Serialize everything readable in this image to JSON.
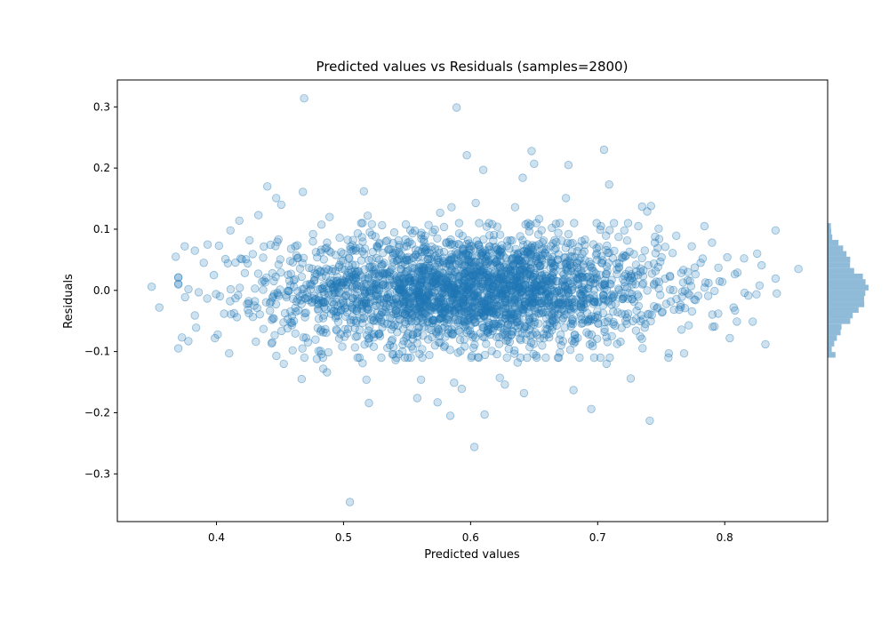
{
  "chart_data": {
    "type": "scatter",
    "title": "Predicted values vs Residuals (samples=2800)",
    "xlabel": "Predicted values",
    "ylabel": "Residuals",
    "xlim": [
      0.322,
      0.881
    ],
    "ylim": [
      -0.378,
      0.344
    ],
    "xticks": [
      0.4,
      0.5,
      0.6,
      0.7,
      0.8
    ],
    "yticks": [
      0.3,
      0.2,
      0.1,
      0.0,
      -0.1,
      -0.2,
      -0.3
    ],
    "xtick_labels": [
      "0.4",
      "0.5",
      "0.6",
      "0.7",
      "0.8"
    ],
    "ytick_labels": [
      "0.3",
      "0.2",
      "0.1",
      "0.0",
      "−0.1",
      "−0.2",
      "−0.3"
    ],
    "grid": false,
    "legend": "none",
    "point_color": "#1f77b4",
    "samples": 2800,
    "distribution": {
      "x_mean": 0.6,
      "x_sd": 0.075,
      "resid_mean": 0.0,
      "resid_sd": 0.045
    },
    "points": [
      [
        0.349,
        0.006
      ],
      [
        0.355,
        -0.028
      ],
      [
        0.368,
        0.055
      ],
      [
        0.375,
        0.072
      ],
      [
        0.378,
        0.002
      ],
      [
        0.383,
        0.065
      ],
      [
        0.384,
        -0.061
      ],
      [
        0.383,
        -0.041
      ],
      [
        0.386,
        -0.003
      ],
      [
        0.39,
        0.045
      ],
      [
        0.393,
        0.075
      ],
      [
        0.398,
        0.025
      ],
      [
        0.401,
        -0.072
      ],
      [
        0.402,
        0.073
      ],
      [
        0.406,
        -0.038
      ],
      [
        0.41,
        -0.103
      ],
      [
        0.411,
        0.098
      ],
      [
        0.415,
        -0.013
      ],
      [
        0.418,
        0.114
      ],
      [
        0.419,
        0.052
      ],
      [
        0.424,
        -0.022
      ],
      [
        0.426,
        0.082
      ],
      [
        0.431,
        -0.084
      ],
      [
        0.433,
        0.123
      ],
      [
        0.437,
        -0.063
      ],
      [
        0.44,
        0.17
      ],
      [
        0.444,
        0.028
      ],
      [
        0.447,
        0.151
      ],
      [
        0.449,
        -0.009
      ],
      [
        0.451,
        0.14
      ],
      [
        0.453,
        -0.12
      ],
      [
        0.456,
        -0.062
      ],
      [
        0.458,
        0.048
      ],
      [
        0.46,
        -0.098
      ],
      [
        0.462,
        0.072
      ],
      [
        0.467,
        -0.145
      ],
      [
        0.468,
        0.161
      ],
      [
        0.469,
        0.314
      ],
      [
        0.472,
        -0.085
      ],
      [
        0.476,
        0.092
      ],
      [
        0.479,
        -0.112
      ],
      [
        0.482,
        0.062
      ],
      [
        0.484,
        -0.128
      ],
      [
        0.487,
        -0.134
      ],
      [
        0.489,
        0.12
      ],
      [
        0.494,
        -0.042
      ],
      [
        0.497,
        0.086
      ],
      [
        0.499,
        -0.092
      ],
      [
        0.502,
        0.009
      ],
      [
        0.505,
        -0.346
      ],
      [
        0.507,
        0.074
      ],
      [
        0.51,
        -0.053
      ],
      [
        0.512,
        0.031
      ],
      [
        0.515,
        -0.119
      ],
      [
        0.516,
        0.162
      ],
      [
        0.518,
        -0.146
      ],
      [
        0.519,
        0.122
      ],
      [
        0.52,
        -0.184
      ],
      [
        0.522,
        -0.004
      ],
      [
        0.525,
        0.088
      ],
      [
        0.528,
        -0.071
      ],
      [
        0.531,
        0.042
      ],
      [
        0.534,
        -0.022
      ],
      [
        0.537,
        0.067
      ],
      [
        0.541,
        -0.114
      ],
      [
        0.544,
        0.011
      ],
      [
        0.547,
        -0.063
      ],
      [
        0.549,
        0.108
      ],
      [
        0.552,
        -0.037
      ],
      [
        0.555,
        0.054
      ],
      [
        0.558,
        -0.176
      ],
      [
        0.561,
        -0.146
      ],
      [
        0.563,
        0.083
      ],
      [
        0.566,
        -0.018
      ],
      [
        0.569,
        0.03
      ],
      [
        0.572,
        -0.09
      ],
      [
        0.574,
        -0.183
      ],
      [
        0.576,
        0.127
      ],
      [
        0.579,
        -0.051
      ],
      [
        0.582,
        0.004
      ],
      [
        0.584,
        -0.205
      ],
      [
        0.585,
        0.136
      ],
      [
        0.587,
        -0.151
      ],
      [
        0.589,
        0.299
      ],
      [
        0.591,
        0.093
      ],
      [
        0.593,
        -0.161
      ],
      [
        0.595,
        -0.028
      ],
      [
        0.597,
        0.221
      ],
      [
        0.599,
        0.061
      ],
      [
        0.601,
        -0.107
      ],
      [
        0.603,
        -0.256
      ],
      [
        0.604,
        0.143
      ],
      [
        0.606,
        -0.003
      ],
      [
        0.608,
        0.038
      ],
      [
        0.61,
        0.197
      ],
      [
        0.611,
        -0.203
      ],
      [
        0.613,
        -0.066
      ],
      [
        0.615,
        0.072
      ],
      [
        0.618,
        -0.021
      ],
      [
        0.621,
        0.104
      ],
      [
        0.623,
        -0.143
      ],
      [
        0.625,
        0.018
      ],
      [
        0.627,
        -0.154
      ],
      [
        0.629,
        0.081
      ],
      [
        0.632,
        -0.046
      ],
      [
        0.635,
        0.136
      ],
      [
        0.637,
        -0.118
      ],
      [
        0.639,
        0.022
      ],
      [
        0.641,
        0.184
      ],
      [
        0.642,
        -0.168
      ],
      [
        0.645,
        0.06
      ],
      [
        0.648,
        0.228
      ],
      [
        0.65,
        0.207
      ],
      [
        0.652,
        -0.11
      ],
      [
        0.654,
        0.117
      ],
      [
        0.657,
        0.011
      ],
      [
        0.66,
        -0.072
      ],
      [
        0.663,
        0.051
      ],
      [
        0.666,
        -0.034
      ],
      [
        0.669,
        0.094
      ],
      [
        0.672,
        0.008
      ],
      [
        0.675,
        0.151
      ],
      [
        0.677,
        0.205
      ],
      [
        0.679,
        -0.059
      ],
      [
        0.681,
        -0.163
      ],
      [
        0.684,
        0.064
      ],
      [
        0.687,
        -0.025
      ],
      [
        0.69,
        0.083
      ],
      [
        0.693,
        -0.072
      ],
      [
        0.695,
        -0.194
      ],
      [
        0.697,
        0.031
      ],
      [
        0.7,
        -0.041
      ],
      [
        0.703,
        0.056
      ],
      [
        0.705,
        0.23
      ],
      [
        0.707,
        -0.12
      ],
      [
        0.709,
        0.173
      ],
      [
        0.712,
        -0.01
      ],
      [
        0.715,
        0.044
      ],
      [
        0.718,
        -0.084
      ],
      [
        0.721,
        0.098
      ],
      [
        0.724,
        -0.038
      ],
      [
        0.726,
        -0.144
      ],
      [
        0.729,
        0.023
      ],
      [
        0.732,
        0.105
      ],
      [
        0.735,
        0.137
      ],
      [
        0.737,
        -0.061
      ],
      [
        0.739,
        0.129
      ],
      [
        0.741,
        -0.213
      ],
      [
        0.742,
        0.138
      ],
      [
        0.745,
        0.078
      ],
      [
        0.748,
        0.101
      ],
      [
        0.751,
        -0.035
      ],
      [
        0.753,
        0.019
      ],
      [
        0.756,
        -0.103
      ],
      [
        0.759,
        0.061
      ],
      [
        0.762,
        -0.014
      ],
      [
        0.766,
        -0.064
      ],
      [
        0.768,
        -0.103
      ],
      [
        0.771,
        0.03
      ],
      [
        0.774,
        0.072
      ],
      [
        0.777,
        -0.016
      ],
      [
        0.781,
        0.045
      ],
      [
        0.784,
        0.105
      ],
      [
        0.787,
        -0.009
      ],
      [
        0.79,
        0.078
      ],
      [
        0.792,
        -0.059
      ],
      [
        0.795,
        0.037
      ],
      [
        0.798,
        0.014
      ],
      [
        0.802,
        0.054
      ],
      [
        0.804,
        -0.078
      ],
      [
        0.807,
        -0.028
      ],
      [
        0.81,
        0.029
      ],
      [
        0.822,
        -0.051
      ],
      [
        0.829,
        0.041
      ],
      [
        0.832,
        -0.088
      ],
      [
        0.841,
        -0.005
      ],
      [
        0.858,
        0.035
      ]
    ]
  }
}
